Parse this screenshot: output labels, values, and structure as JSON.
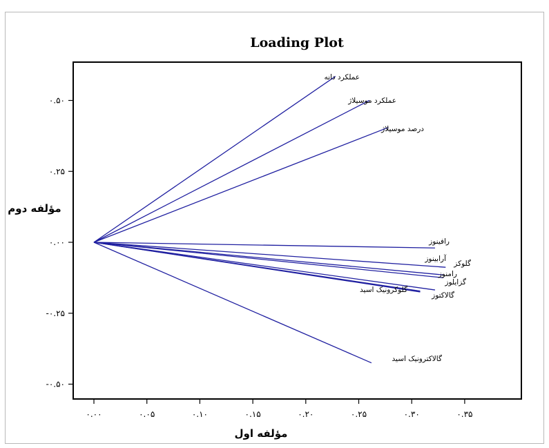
{
  "chart_data": {
    "type": "line",
    "title": "Loading Plot",
    "xlabel": "مؤلفه اول",
    "ylabel": "مؤلفه دوم",
    "xlim": [
      0.0,
      0.4
    ],
    "ylim": [
      -0.55,
      0.6
    ],
    "grid": false,
    "line_color": "#1f1fa0",
    "x_ticks": [
      {
        "value": 0.0,
        "label": "۰.۰۰"
      },
      {
        "value": 0.05,
        "label": "۰.۰۵"
      },
      {
        "value": 0.1,
        "label": "۰.۱۰"
      },
      {
        "value": 0.15,
        "label": "۰.۱۵"
      },
      {
        "value": 0.2,
        "label": "۰.۲۰"
      },
      {
        "value": 0.25,
        "label": "۰.۲۵"
      },
      {
        "value": 0.3,
        "label": "۰.۳۰"
      },
      {
        "value": 0.35,
        "label": "۰.۳۵"
      }
    ],
    "y_ticks": [
      {
        "value": 0.5,
        "label": "۰.۵۰"
      },
      {
        "value": 0.25,
        "label": "۰.۲۵"
      },
      {
        "value": 0.0,
        "label": "۰.۰۰"
      },
      {
        "value": -0.25,
        "label": "-۰.۲۵"
      },
      {
        "value": -0.5,
        "label": "-۰.۵۰"
      }
    ],
    "origin": [
      0.0,
      0.0
    ],
    "vectors": [
      {
        "name": "عملکرد دانه",
        "x": 0.228,
        "y": 0.585
      },
      {
        "name": "عملکرد موسیلاژ",
        "x": 0.26,
        "y": 0.5
      },
      {
        "name": "درصد موسیلاژ",
        "x": 0.278,
        "y": 0.405
      },
      {
        "name": "رافینوز",
        "x": 0.322,
        "y": -0.02
      },
      {
        "name": "آرابینوز",
        "x": 0.332,
        "y": -0.088
      },
      {
        "name": "گلوکز",
        "x": 0.33,
        "y": -0.115
      },
      {
        "name": "رامنوز",
        "x": 0.33,
        "y": -0.125
      },
      {
        "name": "گزایلوز",
        "x": 0.322,
        "y": -0.168
      },
      {
        "name": "گالاکتوز",
        "x": 0.308,
        "y": -0.172
      },
      {
        "name": "گلوکرونیک اسید",
        "x": 0.308,
        "y": -0.175
      },
      {
        "name": "گالاکترونیک اسید",
        "x": 0.262,
        "y": -0.425
      }
    ]
  }
}
